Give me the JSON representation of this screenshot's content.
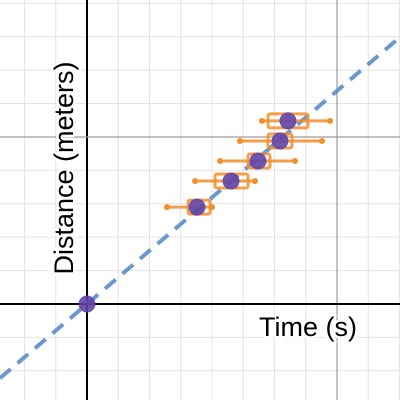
{
  "chart_data": {
    "type": "scatter",
    "x_label": "Time (s)",
    "y_label": "Distance (meters)",
    "xlim": [
      -0.696,
      2.504
    ],
    "ylim": [
      -2.874,
      9.1
    ],
    "xticks": [
      -0.5,
      -0.25,
      0,
      0.25,
      0.5,
      0.75,
      1,
      1.25,
      1.5,
      1.75,
      2,
      2.25,
      2.5
    ],
    "yticks": [
      -2,
      -1,
      0,
      1,
      2,
      3,
      4,
      5,
      6,
      7,
      8,
      9
    ],
    "xmajor": [
      0,
      2
    ],
    "ymajor": [
      0,
      5
    ],
    "grid": true,
    "point_color": "#6042a6",
    "error_color": "#f28e2b",
    "fit_color": "#5b8ec9",
    "fit_slope": 3.19,
    "x": [
      0,
      0.88,
      1.152,
      1.368,
      1.544,
      1.608
    ],
    "values": [
      0,
      2.9,
      3.68,
      4.28,
      4.88,
      5.48
    ],
    "whisker_low": [
      null,
      0.64,
      0.864,
      1.064,
      1.224,
      1.4
    ],
    "whisker_high": [
      null,
      1.0,
      1.344,
      1.664,
      1.88,
      1.944
    ],
    "box_low": [
      null,
      0.808,
      1.024,
      1.288,
      1.448,
      1.448
    ],
    "box_high": [
      null,
      0.984,
      1.288,
      1.464,
      1.64,
      1.768
    ]
  }
}
